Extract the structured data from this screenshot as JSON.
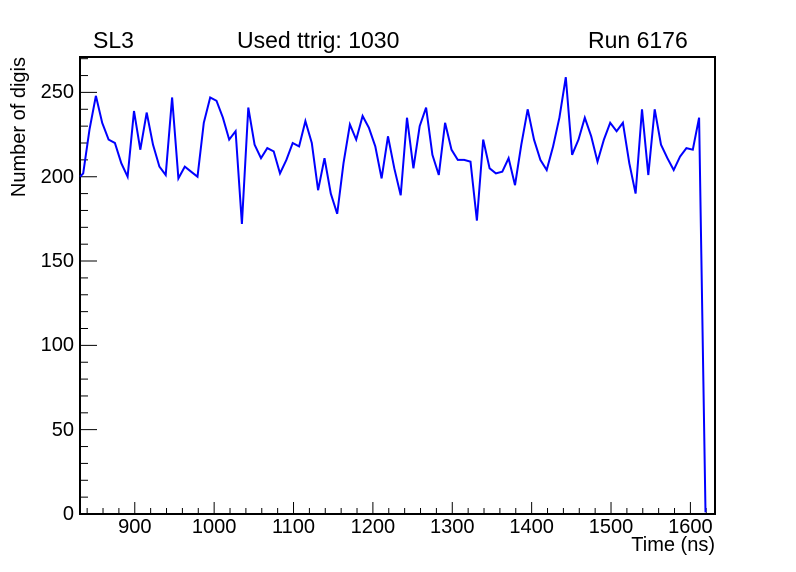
{
  "header": {
    "left": "SL3",
    "center": "Used ttrig: 1030",
    "right": "Run 6176"
  },
  "chart_data": {
    "type": "line",
    "title": "",
    "xlabel": "Time (ns)",
    "ylabel": "Number of digis",
    "xlim": [
      831,
      1631
    ],
    "ylim": [
      0,
      271
    ],
    "grid": false,
    "legend": "none",
    "frame_color": "#000000",
    "line_color": "#0000ff",
    "x_major_ticks": [
      900,
      1000,
      1100,
      1200,
      1300,
      1400,
      1500,
      1600
    ],
    "x_minor_step": 20,
    "y_major_ticks": [
      0,
      50,
      100,
      150,
      200,
      250
    ],
    "y_minor_step": 10,
    "series": [
      {
        "name": "digis-vs-time",
        "x": [
          831,
          835,
          843,
          851,
          859,
          867,
          875,
          883,
          891,
          899,
          907,
          915,
          923,
          931,
          939,
          947,
          955,
          963,
          971,
          979,
          987,
          995,
          1003,
          1011,
          1019,
          1027,
          1035,
          1043,
          1051,
          1059,
          1067,
          1075,
          1083,
          1091,
          1099,
          1107,
          1115,
          1123,
          1131,
          1139,
          1147,
          1155,
          1163,
          1171,
          1179,
          1187,
          1195,
          1203,
          1211,
          1219,
          1227,
          1235,
          1243,
          1251,
          1259,
          1267,
          1275,
          1283,
          1291,
          1299,
          1307,
          1315,
          1323,
          1331,
          1339,
          1347,
          1355,
          1363,
          1371,
          1379,
          1387,
          1395,
          1403,
          1411,
          1419,
          1427,
          1435,
          1443,
          1451,
          1459,
          1467,
          1475,
          1483,
          1491,
          1499,
          1507,
          1515,
          1523,
          1531,
          1539,
          1547,
          1555,
          1563,
          1571,
          1579,
          1587,
          1595,
          1603,
          1611,
          1619
        ],
        "y": [
          200,
          202,
          228,
          248,
          232,
          222,
          220,
          208,
          200,
          239,
          216,
          238,
          219,
          206,
          201,
          247,
          199,
          206,
          203,
          200,
          232,
          247,
          245,
          235,
          222,
          227,
          172,
          241,
          219,
          211,
          217,
          215,
          202,
          210,
          220,
          218,
          233,
          220,
          192,
          211,
          190,
          178,
          208,
          231,
          222,
          236,
          229,
          218,
          199,
          224,
          205,
          189,
          235,
          205,
          230,
          241,
          213,
          201,
          232,
          216,
          210,
          210,
          209,
          174,
          222,
          205,
          202,
          203,
          211,
          195,
          219,
          240,
          222,
          210,
          204,
          218,
          235,
          259,
          213,
          222,
          235,
          224,
          209,
          222,
          232,
          227,
          232,
          208,
          190,
          240,
          201,
          240,
          219,
          211,
          204,
          212,
          217,
          216,
          235,
          1
        ]
      }
    ]
  }
}
